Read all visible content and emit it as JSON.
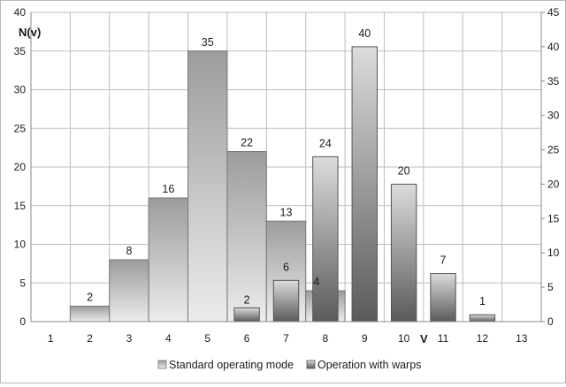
{
  "chart_data": {
    "type": "bar",
    "title": "",
    "ylabel": "N(v)",
    "xlabel": "V",
    "categories": [
      "1",
      "2",
      "3",
      "4",
      "5",
      "6",
      "7",
      "8",
      "9",
      "10",
      "11",
      "12",
      "13"
    ],
    "ylim_left": [
      0,
      40
    ],
    "ylim_right": [
      0,
      45
    ],
    "yticks_left": [
      "0",
      "5",
      "10",
      "15",
      "20",
      "25",
      "30",
      "35",
      "40"
    ],
    "yticks_right": [
      "0",
      "5",
      "10",
      "15",
      "20",
      "25",
      "30",
      "35",
      "40",
      "45"
    ],
    "grid": true,
    "legend_position": "bottom",
    "series": [
      {
        "name": "Standard operating mode",
        "axis": "left",
        "values": [
          0,
          2,
          8,
          16,
          35,
          22,
          13,
          4,
          0,
          0,
          0,
          0,
          0
        ],
        "labels": [
          "",
          "2",
          "8",
          "16",
          "35",
          "22",
          "13",
          "4",
          "",
          "",
          "",
          "",
          ""
        ],
        "color_top": "#9c9c9c",
        "color_bottom": "#ececec"
      },
      {
        "name": "Operation with warps",
        "axis": "right",
        "values": [
          0,
          0,
          0,
          0,
          0,
          2,
          6,
          24,
          40,
          20,
          7,
          1,
          0
        ],
        "labels": [
          "",
          "",
          "",
          "",
          "",
          "2",
          "6",
          "24",
          "40",
          "20",
          "7",
          "1",
          ""
        ],
        "color_top": "#dcdcdc",
        "color_bottom": "#5a5a5a"
      }
    ]
  }
}
